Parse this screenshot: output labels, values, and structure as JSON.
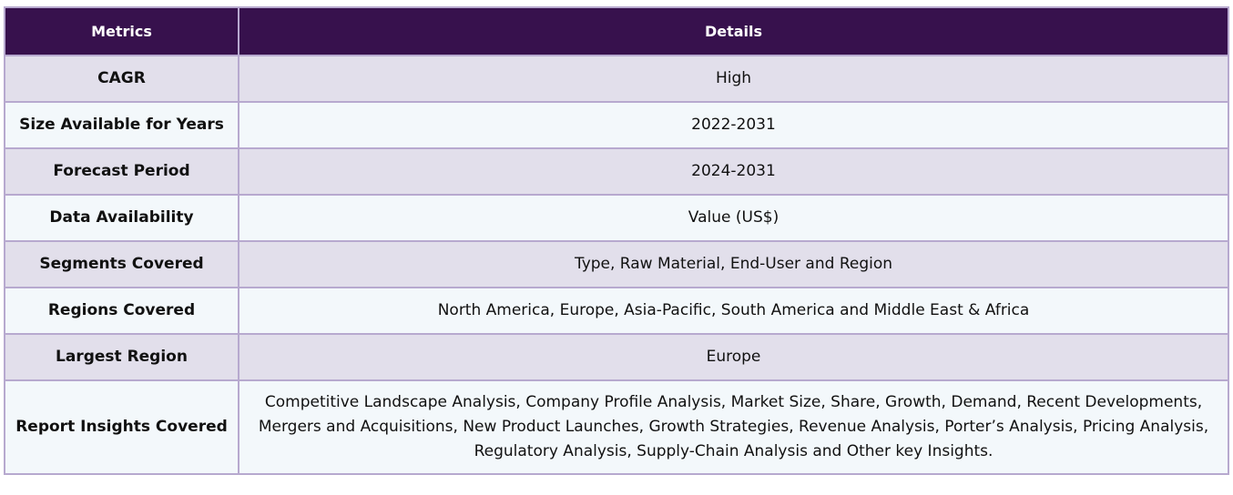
{
  "table": {
    "headers": [
      "Metrics",
      "Details"
    ],
    "rows": [
      {
        "metric": "CAGR",
        "detail": "High"
      },
      {
        "metric": "Size Available for Years",
        "detail": "2022-2031"
      },
      {
        "metric": "Forecast Period",
        "detail": "2024-2031"
      },
      {
        "metric": "Data Availability",
        "detail": "Value (US$)"
      },
      {
        "metric": "Segments Covered",
        "detail": "Type, Raw Material, End-User and Region"
      },
      {
        "metric": "Regions Covered",
        "detail": "North America, Europe, Asia-Pacific, South America and Middle East & Africa"
      },
      {
        "metric": "Largest Region",
        "detail": "Europe"
      },
      {
        "metric": "Report Insights Covered",
        "detail": "Competitive Landscape Analysis, Company Profile Analysis, Market Size, Share, Growth, Demand, Recent Developments, Mergers and Acquisitions, New Product Launches, Growth Strategies, Revenue Analysis, Porter’s Analysis, Pricing Analysis, Regulatory Analysis, Supply-Chain Analysis and Other key Insights."
      }
    ]
  },
  "colors": {
    "header_bg": "#37114d",
    "header_text": "#ffffff",
    "row_odd_bg": "#e2dfeb",
    "row_even_bg": "#f3f8fb",
    "border": "#b7a9cf"
  }
}
